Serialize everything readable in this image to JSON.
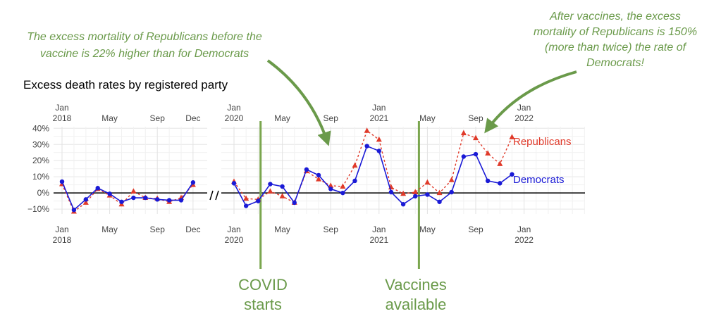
{
  "chart_data": {
    "type": "line",
    "title": "Excess death rates by registered party",
    "y_ticks": [
      "40%",
      "30%",
      "20%",
      "10%",
      "0%",
      "−10%"
    ],
    "ylim": [
      -13,
      41
    ],
    "y_tick_values": [
      40,
      30,
      20,
      10,
      0,
      -10
    ],
    "grid": true,
    "panels": [
      {
        "x_ticks": [
          {
            "line1": "Jan",
            "line2": "2018"
          },
          {
            "line1": "May",
            "line2": ""
          },
          {
            "line1": "Sep",
            "line2": ""
          },
          {
            "line1": "Dec",
            "line2": ""
          }
        ],
        "x_tick_months": [
          0,
          4,
          8,
          11
        ],
        "xlim": [
          0,
          11
        ]
      },
      {
        "x_ticks": [
          {
            "line1": "Jan",
            "line2": "2020"
          },
          {
            "line1": "May",
            "line2": ""
          },
          {
            "line1": "Sep",
            "line2": ""
          },
          {
            "line1": "Jan",
            "line2": "2021"
          },
          {
            "line1": "May",
            "line2": ""
          },
          {
            "line1": "Sep",
            "line2": ""
          },
          {
            "line1": "Jan",
            "line2": "2022"
          }
        ],
        "x_tick_months": [
          0,
          4,
          8,
          12,
          16,
          20,
          24
        ],
        "xlim": [
          0,
          29
        ]
      }
    ],
    "series": [
      {
        "name": "Republicans",
        "color": "#e03a2a",
        "style": "dashed",
        "marker": "triangle",
        "panel1": [
          5.5,
          -11.5,
          -6,
          2.5,
          -1.5,
          -7,
          1,
          -3,
          -3.5,
          -5.5,
          -3,
          5
        ],
        "panel2": [
          7,
          -3.5,
          -4,
          1,
          -2,
          -6,
          13.5,
          8.5,
          4.5,
          4,
          17,
          38.5,
          33,
          3.5,
          -0.5,
          0.5,
          6.5,
          0,
          8,
          37,
          34,
          24.5,
          18,
          34.5
        ]
      },
      {
        "name": "Democrats",
        "color": "#1a1ad6",
        "style": "solid",
        "marker": "circle",
        "panel1": [
          7,
          -10.5,
          -4,
          3,
          -0.5,
          -5.5,
          -3,
          -3,
          -4,
          -4.5,
          -4.5,
          6.5
        ],
        "panel2": [
          6,
          -8,
          -5,
          5.5,
          4,
          -6,
          14.5,
          11,
          2.5,
          0,
          7.5,
          29,
          26,
          0.5,
          -7,
          -2,
          -1,
          -5.5,
          0.5,
          22.5,
          24,
          7.5,
          6,
          11.5
        ]
      }
    ],
    "events": [
      {
        "label_line1": "COVID",
        "label_line2": "starts",
        "month_index": 2.2
      },
      {
        "label_line1": "Vaccines",
        "label_line2": "available",
        "month_index": 15.3
      }
    ],
    "annotations": [
      {
        "lines": [
          "The excess mortality of Republicans before the",
          "vaccine is 22% higher than for Democrats"
        ]
      },
      {
        "lines": [
          "After vaccines, the excess",
          "mortality of Republicans is 150%",
          "(more than twice) the rate of",
          "Democrats!"
        ]
      }
    ],
    "colors": {
      "annotation": "#6a9a4a",
      "grid": "#e6e6e6",
      "zero_line": "#000000"
    }
  }
}
